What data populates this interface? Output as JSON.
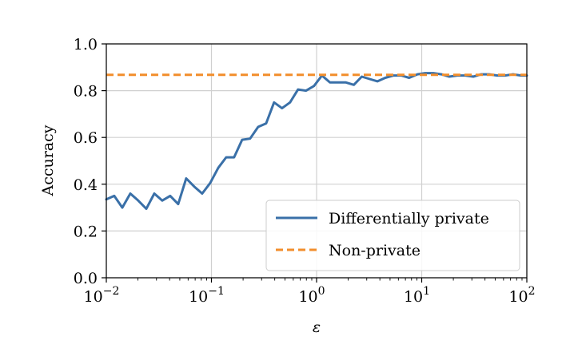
{
  "chart_data": {
    "type": "line",
    "xscale": "log",
    "xlim": [
      0.01,
      100
    ],
    "ylim": [
      0.0,
      1.0
    ],
    "grid": true,
    "xlabel": "ε",
    "ylabel": "Accuracy",
    "legend_placement": "lower-right",
    "x_ticks": [
      {
        "value": 0.01,
        "base": "10",
        "exp": "−2"
      },
      {
        "value": 0.1,
        "base": "10",
        "exp": "−1"
      },
      {
        "value": 1,
        "base": "10",
        "exp": "0"
      },
      {
        "value": 10,
        "base": "10",
        "exp": "1"
      },
      {
        "value": 100,
        "base": "10",
        "exp": "2"
      }
    ],
    "y_ticks": [
      "0.0",
      "0.2",
      "0.4",
      "0.6",
      "0.8",
      "1.0"
    ],
    "series": [
      {
        "name": "Differentially private",
        "color": "#3a70a8",
        "style": "solid",
        "points": [
          [
            0.01,
            0.335
          ],
          [
            0.0119,
            0.35
          ],
          [
            0.0142,
            0.3
          ],
          [
            0.0169,
            0.36
          ],
          [
            0.0201,
            0.33
          ],
          [
            0.024,
            0.295
          ],
          [
            0.0286,
            0.36
          ],
          [
            0.034,
            0.33
          ],
          [
            0.0405,
            0.35
          ],
          [
            0.0483,
            0.315
          ],
          [
            0.0575,
            0.425
          ],
          [
            0.0685,
            0.39
          ],
          [
            0.0816,
            0.36
          ],
          [
            0.0972,
            0.405
          ],
          [
            0.116,
            0.47
          ],
          [
            0.138,
            0.515
          ],
          [
            0.164,
            0.515
          ],
          [
            0.196,
            0.59
          ],
          [
            0.233,
            0.595
          ],
          [
            0.278,
            0.645
          ],
          [
            0.331,
            0.66
          ],
          [
            0.394,
            0.75
          ],
          [
            0.469,
            0.725
          ],
          [
            0.559,
            0.75
          ],
          [
            0.666,
            0.805
          ],
          [
            0.793,
            0.8
          ],
          [
            0.945,
            0.82
          ],
          [
            1.125,
            0.865
          ],
          [
            1.34,
            0.835
          ],
          [
            1.6,
            0.835
          ],
          [
            1.9,
            0.835
          ],
          [
            2.26,
            0.825
          ],
          [
            2.69,
            0.86
          ],
          [
            3.2,
            0.85
          ],
          [
            3.8,
            0.84
          ],
          [
            4.5,
            0.855
          ],
          [
            5.4,
            0.865
          ],
          [
            6.4,
            0.865
          ],
          [
            7.6,
            0.855
          ],
          [
            9.1,
            0.87
          ],
          [
            10.8,
            0.875
          ],
          [
            12.9,
            0.875
          ],
          [
            15.4,
            0.87
          ],
          [
            18.3,
            0.86
          ],
          [
            21.8,
            0.865
          ],
          [
            26,
            0.865
          ],
          [
            31,
            0.86
          ],
          [
            36.8,
            0.87
          ],
          [
            43.8,
            0.87
          ],
          [
            52.2,
            0.865
          ],
          [
            62,
            0.865
          ],
          [
            74,
            0.87
          ],
          [
            88,
            0.865
          ],
          [
            100,
            0.865
          ]
        ]
      },
      {
        "name": "Non-private",
        "color": "#f28e2c",
        "style": "dashed",
        "points": [
          [
            0.01,
            0.868
          ],
          [
            100,
            0.868
          ]
        ]
      }
    ]
  }
}
